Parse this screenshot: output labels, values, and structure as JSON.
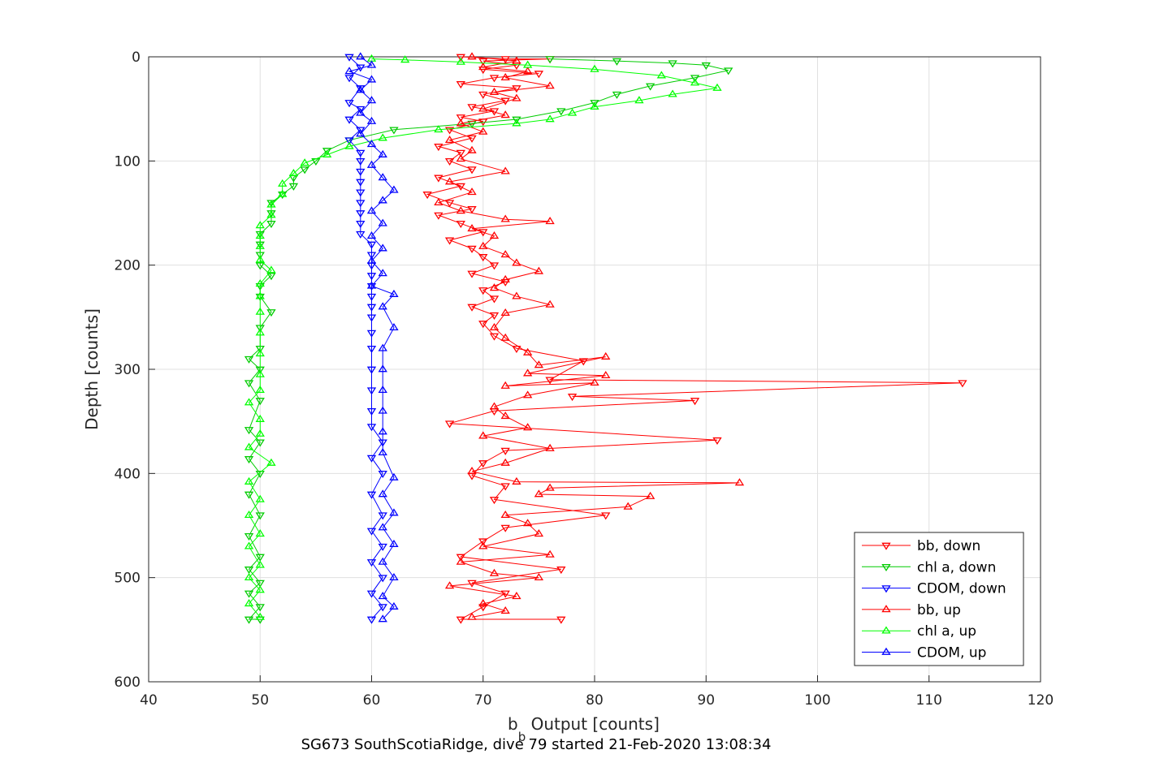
{
  "chart_data": {
    "type": "scatter",
    "xlabel_main": "b",
    "xlabel_sub": "b",
    "xlabel_rest": " Output [counts]",
    "ylabel": "Depth [counts]",
    "caption": "SG673 SouthScotiaRidge, dive 79 started 21-Feb-2020 13:08:34",
    "xlim": [
      40,
      120
    ],
    "ylim": [
      0,
      600
    ],
    "y_reversed": true,
    "grid": true,
    "legend_position": "bottom-right",
    "x_ticks": [
      "40",
      "50",
      "60",
      "70",
      "80",
      "90",
      "100",
      "110",
      "120"
    ],
    "y_ticks": [
      "0",
      "100",
      "200",
      "300",
      "400",
      "500",
      "600"
    ],
    "series": [
      {
        "name": "bb, down",
        "color": "#ff0000",
        "marker": "triangle-down",
        "points": [
          [
            68,
            0
          ],
          [
            72,
            2
          ],
          [
            76,
            2
          ],
          [
            70,
            4
          ],
          [
            73,
            8
          ],
          [
            70,
            12
          ],
          [
            75,
            16
          ],
          [
            71,
            20
          ],
          [
            68,
            26
          ],
          [
            73,
            30
          ],
          [
            70,
            36
          ],
          [
            72,
            42
          ],
          [
            69,
            48
          ],
          [
            71,
            52
          ],
          [
            68,
            58
          ],
          [
            70,
            62
          ],
          [
            67,
            70
          ],
          [
            69,
            78
          ],
          [
            66,
            86
          ],
          [
            68,
            92
          ],
          [
            67,
            100
          ],
          [
            69,
            108
          ],
          [
            66,
            116
          ],
          [
            68,
            124
          ],
          [
            65,
            132
          ],
          [
            67,
            140
          ],
          [
            69,
            146
          ],
          [
            66,
            152
          ],
          [
            68,
            160
          ],
          [
            70,
            168
          ],
          [
            67,
            176
          ],
          [
            69,
            184
          ],
          [
            70,
            192
          ],
          [
            71,
            200
          ],
          [
            69,
            208
          ],
          [
            72,
            216
          ],
          [
            70,
            224
          ],
          [
            71,
            232
          ],
          [
            69,
            240
          ],
          [
            71,
            248
          ],
          [
            70,
            256
          ],
          [
            71,
            268
          ],
          [
            73,
            280
          ],
          [
            79,
            292
          ],
          [
            76,
            310
          ],
          [
            113,
            313
          ],
          [
            78,
            326
          ],
          [
            89,
            330
          ],
          [
            71,
            340
          ],
          [
            67,
            352
          ],
          [
            91,
            368
          ],
          [
            72,
            378
          ],
          [
            70,
            390
          ],
          [
            69,
            402
          ],
          [
            72,
            412
          ],
          [
            71,
            425
          ],
          [
            81,
            440
          ],
          [
            72,
            452
          ],
          [
            70,
            465
          ],
          [
            68,
            480
          ],
          [
            77,
            492
          ],
          [
            69,
            505
          ],
          [
            72,
            515
          ],
          [
            70,
            528
          ],
          [
            68,
            540
          ],
          [
            77,
            540
          ]
        ]
      },
      {
        "name": "chl a, down",
        "color": "#00cc00",
        "marker": "triangle-down",
        "points": [
          [
            76,
            2
          ],
          [
            82,
            4
          ],
          [
            87,
            6
          ],
          [
            90,
            8
          ],
          [
            92,
            13
          ],
          [
            89,
            20
          ],
          [
            85,
            28
          ],
          [
            82,
            36
          ],
          [
            80,
            44
          ],
          [
            77,
            52
          ],
          [
            73,
            60
          ],
          [
            69,
            64
          ],
          [
            62,
            70
          ],
          [
            58,
            80
          ],
          [
            56,
            90
          ],
          [
            55,
            100
          ],
          [
            54,
            108
          ],
          [
            53,
            116
          ],
          [
            53,
            124
          ],
          [
            52,
            132
          ],
          [
            51,
            140
          ],
          [
            51,
            150
          ],
          [
            51,
            160
          ],
          [
            50,
            170
          ],
          [
            50,
            180
          ],
          [
            50,
            190
          ],
          [
            50,
            200
          ],
          [
            51,
            210
          ],
          [
            50,
            220
          ],
          [
            50,
            230
          ],
          [
            51,
            245
          ],
          [
            50,
            260
          ],
          [
            50,
            280
          ],
          [
            49,
            290
          ],
          [
            50,
            300
          ],
          [
            49,
            313
          ],
          [
            50,
            330
          ],
          [
            49,
            358
          ],
          [
            50,
            370
          ],
          [
            49,
            386
          ],
          [
            50,
            400
          ],
          [
            49,
            420
          ],
          [
            50,
            440
          ],
          [
            49,
            460
          ],
          [
            50,
            480
          ],
          [
            49,
            492
          ],
          [
            50,
            505
          ],
          [
            49,
            515
          ],
          [
            50,
            528
          ],
          [
            49,
            540
          ],
          [
            50,
            540
          ]
        ]
      },
      {
        "name": "CDOM, down",
        "color": "#0000ff",
        "marker": "triangle-down",
        "points": [
          [
            58,
            0
          ],
          [
            59,
            10
          ],
          [
            58,
            20
          ],
          [
            59,
            30
          ],
          [
            58,
            44
          ],
          [
            59,
            50
          ],
          [
            58,
            60
          ],
          [
            59,
            70
          ],
          [
            58,
            80
          ],
          [
            59,
            92
          ],
          [
            59,
            100
          ],
          [
            59,
            110
          ],
          [
            59,
            120
          ],
          [
            59,
            130
          ],
          [
            59,
            140
          ],
          [
            59,
            150
          ],
          [
            59,
            160
          ],
          [
            59,
            170
          ],
          [
            60,
            180
          ],
          [
            60,
            190
          ],
          [
            60,
            200
          ],
          [
            60,
            210
          ],
          [
            60,
            220
          ],
          [
            60,
            230
          ],
          [
            60,
            240
          ],
          [
            60,
            250
          ],
          [
            60,
            265
          ],
          [
            60,
            280
          ],
          [
            60,
            300
          ],
          [
            60,
            320
          ],
          [
            60,
            340
          ],
          [
            60,
            355
          ],
          [
            61,
            370
          ],
          [
            60,
            385
          ],
          [
            61,
            400
          ],
          [
            60,
            420
          ],
          [
            61,
            440
          ],
          [
            60,
            455
          ],
          [
            61,
            470
          ],
          [
            60,
            485
          ],
          [
            61,
            500
          ],
          [
            60,
            515
          ],
          [
            61,
            528
          ],
          [
            60,
            540
          ]
        ]
      },
      {
        "name": "bb, up",
        "color": "#ff0000",
        "marker": "triangle-up",
        "points": [
          [
            69,
            0
          ],
          [
            73,
            4
          ],
          [
            70,
            10
          ],
          [
            74,
            14
          ],
          [
            72,
            20
          ],
          [
            76,
            28
          ],
          [
            71,
            34
          ],
          [
            73,
            40
          ],
          [
            70,
            50
          ],
          [
            72,
            56
          ],
          [
            68,
            64
          ],
          [
            70,
            72
          ],
          [
            67,
            80
          ],
          [
            69,
            90
          ],
          [
            68,
            98
          ],
          [
            72,
            110
          ],
          [
            67,
            120
          ],
          [
            69,
            130
          ],
          [
            66,
            140
          ],
          [
            68,
            148
          ],
          [
            72,
            156
          ],
          [
            76,
            158
          ],
          [
            69,
            165
          ],
          [
            71,
            172
          ],
          [
            70,
            182
          ],
          [
            72,
            190
          ],
          [
            73,
            198
          ],
          [
            75,
            206
          ],
          [
            72,
            214
          ],
          [
            71,
            222
          ],
          [
            73,
            230
          ],
          [
            76,
            238
          ],
          [
            72,
            246
          ],
          [
            71,
            260
          ],
          [
            72,
            270
          ],
          [
            74,
            284
          ],
          [
            75,
            296
          ],
          [
            81,
            288
          ],
          [
            74,
            304
          ],
          [
            81,
            306
          ],
          [
            72,
            316
          ],
          [
            80,
            313
          ],
          [
            74,
            325
          ],
          [
            71,
            336
          ],
          [
            72,
            345
          ],
          [
            74,
            356
          ],
          [
            70,
            364
          ],
          [
            76,
            376
          ],
          [
            72,
            390
          ],
          [
            69,
            398
          ],
          [
            73,
            408
          ],
          [
            93,
            409
          ],
          [
            76,
            414
          ],
          [
            75,
            420
          ],
          [
            85,
            422
          ],
          [
            83,
            432
          ],
          [
            72,
            440
          ],
          [
            74,
            448
          ],
          [
            75,
            458
          ],
          [
            70,
            470
          ],
          [
            76,
            478
          ],
          [
            68,
            485
          ],
          [
            71,
            496
          ],
          [
            75,
            500
          ],
          [
            67,
            508
          ],
          [
            73,
            518
          ],
          [
            70,
            525
          ],
          [
            72,
            532
          ],
          [
            69,
            538
          ]
        ]
      },
      {
        "name": "chl a, up",
        "color": "#00ff00",
        "marker": "triangle-up",
        "points": [
          [
            60,
            2
          ],
          [
            63,
            3
          ],
          [
            68,
            5
          ],
          [
            74,
            8
          ],
          [
            80,
            12
          ],
          [
            86,
            18
          ],
          [
            89,
            25
          ],
          [
            91,
            30
          ],
          [
            87,
            36
          ],
          [
            84,
            42
          ],
          [
            80,
            48
          ],
          [
            78,
            54
          ],
          [
            76,
            60
          ],
          [
            73,
            64
          ],
          [
            66,
            70
          ],
          [
            61,
            78
          ],
          [
            58,
            86
          ],
          [
            56,
            94
          ],
          [
            54,
            102
          ],
          [
            53,
            112
          ],
          [
            52,
            122
          ],
          [
            52,
            132
          ],
          [
            51,
            142
          ],
          [
            51,
            152
          ],
          [
            50,
            162
          ],
          [
            50,
            172
          ],
          [
            50,
            182
          ],
          [
            50,
            195
          ],
          [
            51,
            205
          ],
          [
            50,
            218
          ],
          [
            50,
            230
          ],
          [
            50,
            245
          ],
          [
            50,
            265
          ],
          [
            50,
            285
          ],
          [
            50,
            305
          ],
          [
            50,
            320
          ],
          [
            49,
            332
          ],
          [
            50,
            348
          ],
          [
            50,
            362
          ],
          [
            49,
            375
          ],
          [
            51,
            390
          ],
          [
            49,
            408
          ],
          [
            50,
            425
          ],
          [
            49,
            440
          ],
          [
            50,
            458
          ],
          [
            49,
            470
          ],
          [
            50,
            488
          ],
          [
            49,
            500
          ],
          [
            50,
            512
          ],
          [
            49,
            525
          ],
          [
            50,
            538
          ]
        ]
      },
      {
        "name": "CDOM, up",
        "color": "#0000ff",
        "marker": "triangle-up",
        "points": [
          [
            59,
            0
          ],
          [
            60,
            8
          ],
          [
            58,
            14
          ],
          [
            60,
            22
          ],
          [
            59,
            32
          ],
          [
            60,
            42
          ],
          [
            59,
            54
          ],
          [
            60,
            62
          ],
          [
            59,
            74
          ],
          [
            60,
            84
          ],
          [
            61,
            94
          ],
          [
            60,
            104
          ],
          [
            61,
            116
          ],
          [
            62,
            128
          ],
          [
            61,
            138
          ],
          [
            60,
            148
          ],
          [
            61,
            160
          ],
          [
            60,
            172
          ],
          [
            61,
            184
          ],
          [
            60,
            196
          ],
          [
            61,
            208
          ],
          [
            60,
            220
          ],
          [
            62,
            228
          ],
          [
            61,
            240
          ],
          [
            62,
            260
          ],
          [
            61,
            280
          ],
          [
            61,
            300
          ],
          [
            61,
            320
          ],
          [
            61,
            340
          ],
          [
            61,
            360
          ],
          [
            61,
            380
          ],
          [
            62,
            404
          ],
          [
            61,
            420
          ],
          [
            62,
            438
          ],
          [
            61,
            452
          ],
          [
            62,
            468
          ],
          [
            61,
            485
          ],
          [
            62,
            500
          ],
          [
            61,
            518
          ],
          [
            62,
            528
          ],
          [
            61,
            540
          ]
        ]
      }
    ]
  }
}
